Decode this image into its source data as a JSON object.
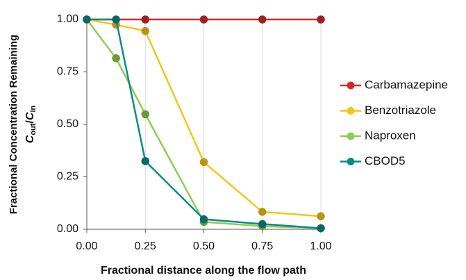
{
  "chart_data": {
    "type": "line",
    "xlabel": "Fractional distance along the flow path",
    "ylabel": "Fractional Concentration Remaining",
    "ylabel_formula": [
      "C",
      "out",
      "/",
      "C",
      "in"
    ],
    "xlim": [
      0,
      1
    ],
    "ylim": [
      0,
      1
    ],
    "xticks": [
      {
        "value": 0,
        "label": "0.00"
      },
      {
        "value": 0.25,
        "label": "0.25"
      },
      {
        "value": 0.5,
        "label": "0.50"
      },
      {
        "value": 0.75,
        "label": "0.75"
      },
      {
        "value": 1,
        "label": "1.00"
      }
    ],
    "yticks": [
      {
        "value": 0,
        "label": "0.00"
      },
      {
        "value": 0.25,
        "label": "0.25"
      },
      {
        "value": 0.5,
        "label": "0.50"
      },
      {
        "value": 0.75,
        "label": "0.75"
      },
      {
        "value": 1,
        "label": "1.00"
      }
    ],
    "grid": "x",
    "legend": "right",
    "series": [
      {
        "name": "Carbamazepine",
        "color": "#d42a2a",
        "x": [
          0,
          0.25,
          0.5,
          0.75,
          1
        ],
        "values": [
          1,
          1,
          1,
          1,
          1
        ]
      },
      {
        "name": "Benzotriazole",
        "color": "#f5c518",
        "x": [
          0,
          0.125,
          0.25,
          0.5,
          0.75,
          1
        ],
        "values": [
          1,
          0.975,
          0.945,
          0.32,
          0.083,
          0.062
        ]
      },
      {
        "name": "Naproxen",
        "color": "#8fcc50",
        "x": [
          0,
          0.125,
          0.25,
          0.5,
          0.75,
          1
        ],
        "values": [
          1,
          0.815,
          0.548,
          0.035,
          0.015,
          0.005
        ]
      },
      {
        "name": "CBOD5",
        "color": "#0a8a8c",
        "x": [
          0,
          0.125,
          0.25,
          0.5,
          0.75,
          1
        ],
        "values": [
          1,
          1,
          0.325,
          0.048,
          0.025,
          0.005
        ]
      }
    ]
  }
}
